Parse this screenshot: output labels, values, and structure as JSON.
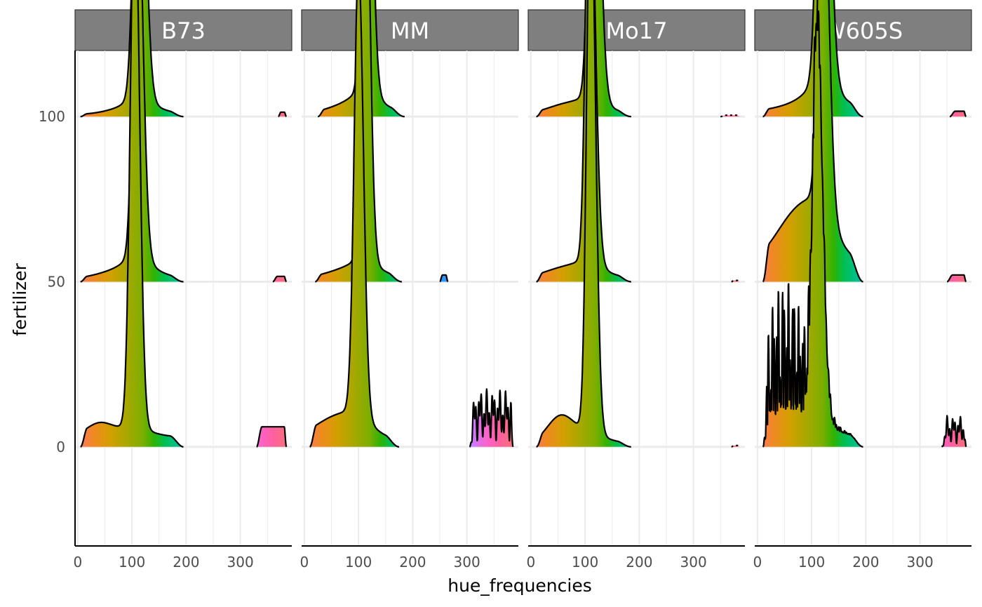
{
  "chart_data": {
    "type": "area",
    "subtype": "ridgeline density by hue (faceted)",
    "xlabel": "hue_frequencies",
    "ylabel": "fertilizer",
    "facets": [
      "B73",
      "MM",
      "Mo17",
      "W605S"
    ],
    "x_ticks": [
      "0",
      "100",
      "200",
      "300"
    ],
    "y_ticks": [
      "0",
      "50",
      "100"
    ],
    "xlim": [
      -5,
      395
    ],
    "ylim": [
      -30,
      120
    ],
    "ridge_scale_y_units": 135,
    "fill": "hue gradient (fill color equals hue value)",
    "grid": true,
    "legend": "none",
    "ridges": {
      "B73": {
        "100": {
          "main": {
            "start": 5,
            "end": 195,
            "baseline": 0.003,
            "shoulder": {
              "x": 80,
              "h": 0.003,
              "w": 40
            },
            "peak_x": 113,
            "peak_h": 0.82,
            "sigma_l": 9,
            "sigma_r": 11,
            "tail": 0.06
          },
          "blips": [
            {
              "start": 370,
              "end": 385,
              "h": 0.01
            }
          ]
        },
        "50": {
          "main": {
            "start": 5,
            "end": 195,
            "baseline": 0.004,
            "shoulder": {
              "x": 60,
              "h": 0.008,
              "w": 40
            },
            "peak_x": 110,
            "peak_h": 0.86,
            "sigma_l": 8,
            "sigma_r": 10,
            "tail": 0.08
          },
          "blips": [
            {
              "start": 360,
              "end": 385,
              "h": 0.012
            }
          ]
        },
        "0": {
          "main": {
            "start": 5,
            "end": 195,
            "baseline": 0.02,
            "shoulder": {
              "x": 40,
              "h": 0.03,
              "w": 25
            },
            "peak_x": 105,
            "peak_h": 1.2,
            "sigma_l": 8,
            "sigma_r": 9,
            "tail": 0.04
          },
          "blips": [
            {
              "start": 330,
              "end": 385,
              "h": 0.045
            }
          ]
        }
      },
      "MM": {
        "100": {
          "main": {
            "start": 25,
            "end": 185,
            "baseline": 0.003,
            "shoulder": {
              "x": 70,
              "h": 0.01,
              "w": 40
            },
            "peak_x": 113,
            "peak_h": 1.08,
            "sigma_l": 7,
            "sigma_r": 10,
            "tail": 0.08
          },
          "blips": []
        },
        "50": {
          "main": {
            "start": 20,
            "end": 180,
            "baseline": 0.005,
            "shoulder": {
              "x": 70,
              "h": 0.012,
              "w": 40
            },
            "peak_x": 111,
            "peak_h": 1.1,
            "sigma_l": 7,
            "sigma_r": 9,
            "tail": 0.06
          },
          "blips": [
            {
              "start": 250,
              "end": 265,
              "h": 0.015
            }
          ]
        },
        "0": {
          "main": {
            "start": 10,
            "end": 175,
            "baseline": 0.01,
            "shoulder": {
              "x": 60,
              "h": 0.05,
              "w": 45
            },
            "peak_x": 100,
            "peak_h": 0.99,
            "sigma_l": 8,
            "sigma_r": 9,
            "tail": 0.05
          },
          "blips": [
            {
              "start": 305,
              "end": 385,
              "h": 0.13,
              "noisy": true
            }
          ]
        }
      },
      "Mo17": {
        "100": {
          "main": {
            "start": 10,
            "end": 185,
            "baseline": 0.002,
            "shoulder": {
              "x": 65,
              "h": 0.02,
              "w": 40
            },
            "peak_x": 115,
            "peak_h": 0.91,
            "sigma_l": 8,
            "sigma_r": 11,
            "tail": 0.05
          },
          "blips": [
            {
              "start": 350,
              "end": 385,
              "h": 0.003,
              "dashed": true
            }
          ]
        },
        "50": {
          "main": {
            "start": 10,
            "end": 185,
            "baseline": 0.005,
            "shoulder": {
              "x": 60,
              "h": 0.02,
              "w": 40
            },
            "peak_x": 108,
            "peak_h": 0.98,
            "sigma_l": 7,
            "sigma_r": 10,
            "tail": 0.05
          },
          "blips": [
            {
              "start": 370,
              "end": 385,
              "h": 0.003,
              "dashed": true
            }
          ]
        },
        "0": {
          "main": {
            "start": 10,
            "end": 185,
            "baseline": 0.005,
            "shoulder": {
              "x": 55,
              "h": 0.06,
              "w": 25
            },
            "peak_x": 110,
            "peak_h": 1.25,
            "sigma_l": 7,
            "sigma_r": 9,
            "tail": 0.04
          },
          "blips": [
            {
              "start": 370,
              "end": 385,
              "h": 0.003,
              "dashed": true
            }
          ]
        }
      },
      "W605S": {
        "100": {
          "main": {
            "start": 10,
            "end": 195,
            "baseline": 0.01,
            "shoulder": {
              "x": 60,
              "h": 0.005,
              "w": 40
            },
            "peak_x": 120,
            "peak_h": 0.95,
            "sigma_l": 9,
            "sigma_r": 12,
            "tail": 0.12
          },
          "blips": [
            {
              "start": 355,
              "end": 385,
              "h": 0.012
            }
          ]
        },
        "50": {
          "main": {
            "start": 10,
            "end": 195,
            "baseline": 0.03,
            "shoulder": {
              "x": 80,
              "h": 0.12,
              "w": 45
            },
            "peak_x": 120,
            "peak_h": 0.84,
            "sigma_l": 8,
            "sigma_r": 11,
            "tail": 0.1
          },
          "blips": [
            {
              "start": 350,
              "end": 385,
              "h": 0.015
            }
          ]
        },
        "0": {
          "main": {
            "start": 10,
            "end": 195,
            "baseline": 0.02,
            "shoulder": {
              "x": 50,
              "h": 0.2,
              "w": 40,
              "noisy": true
            },
            "peak_x": 110,
            "peak_h": 0.85,
            "sigma_l": 8,
            "sigma_r": 10,
            "tail": 0.05
          },
          "blips": [
            {
              "start": 340,
              "end": 385,
              "h": 0.07,
              "noisy": true
            }
          ]
        }
      }
    }
  }
}
